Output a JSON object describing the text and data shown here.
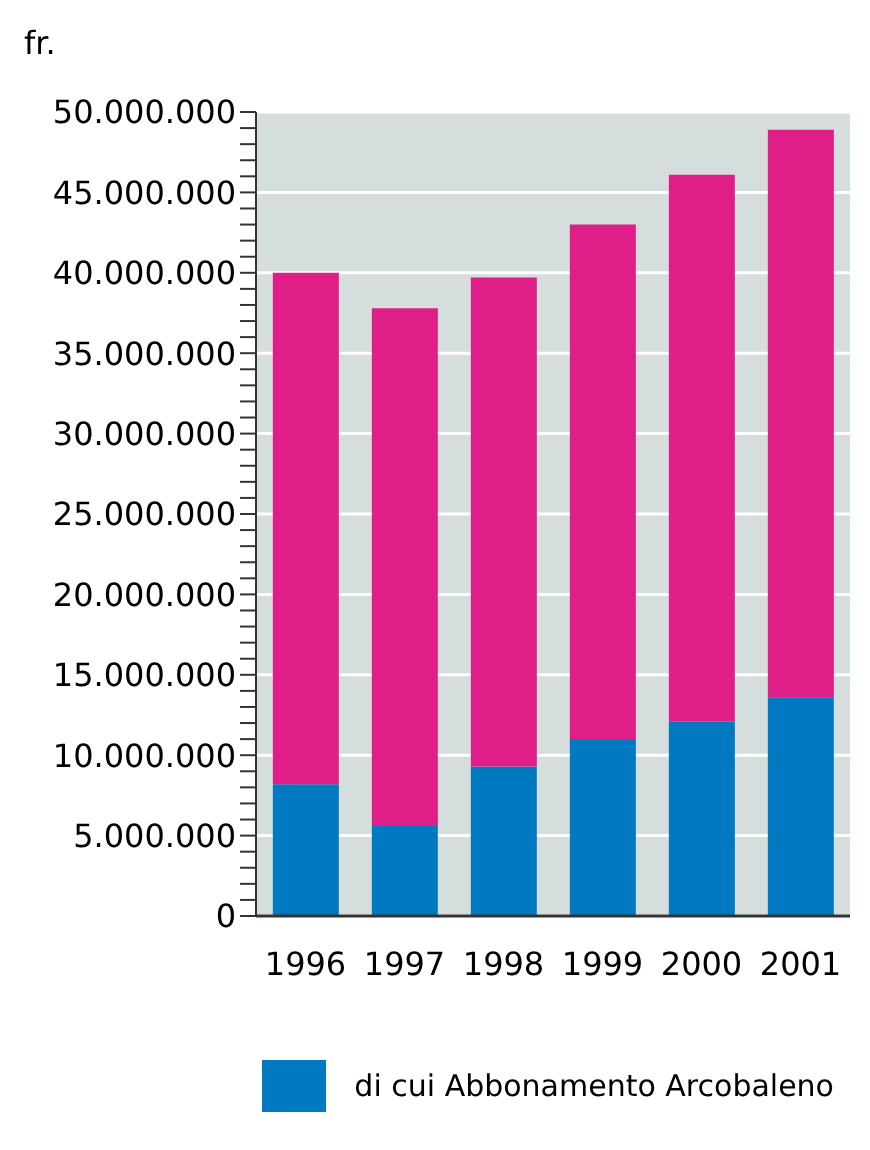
{
  "chart_data": {
    "type": "bar",
    "ylabel": "fr.",
    "categories": [
      "1996",
      "1997",
      "1998",
      "1999",
      "2000",
      "2001"
    ],
    "stacked": true,
    "series": [
      {
        "name": "di cui Abbonamento Arcobaleno",
        "color": "#0079c1",
        "values": [
          8200000,
          5600000,
          9300000,
          11000000,
          12100000,
          13600000
        ]
      },
      {
        "color": "#e01e87",
        "values": [
          31800000,
          32200000,
          30400000,
          32000000,
          34000000,
          35300000
        ]
      }
    ],
    "ylim": [
      0,
      50000000
    ],
    "yticks": [
      0,
      {
        "value": 1000000,
        "label": null
      },
      {
        "value": 2000000,
        "label": null
      },
      {
        "value": 3000000,
        "label": null
      },
      {
        "value": 4000000,
        "label": null
      },
      {
        "value": 5000000,
        "label": "5.000.000"
      },
      {
        "value": 6000000,
        "label": null
      },
      {
        "value": 7000000,
        "label": null
      },
      {
        "value": 8000000,
        "label": null
      },
      {
        "value": 9000000,
        "label": null
      },
      {
        "value": 10000000,
        "label": "10.000.000"
      },
      {
        "value": 11000000,
        "label": null
      },
      {
        "value": 12000000,
        "label": null
      },
      {
        "value": 13000000,
        "label": null
      },
      {
        "value": 14000000,
        "label": null
      },
      {
        "value": 15000000,
        "label": "15.000.000"
      },
      {
        "value": 16000000,
        "label": null
      },
      {
        "value": 17000000,
        "label": null
      },
      {
        "value": 18000000,
        "label": null
      },
      {
        "value": 19000000,
        "label": null
      },
      {
        "value": 20000000,
        "label": "20.000.000"
      },
      {
        "value": 21000000,
        "label": null
      },
      {
        "value": 22000000,
        "label": null
      },
      {
        "value": 23000000,
        "label": null
      },
      {
        "value": 24000000,
        "label": null
      },
      {
        "value": 25000000,
        "label": "25.000.000"
      },
      {
        "value": 26000000,
        "label": null
      },
      {
        "value": 27000000,
        "label": null
      },
      {
        "value": 28000000,
        "label": null
      },
      {
        "value": 29000000,
        "label": null
      },
      {
        "value": 30000000,
        "label": "30.000.000"
      },
      {
        "value": 31000000,
        "label": null
      },
      {
        "value": 32000000,
        "label": null
      },
      {
        "value": 33000000,
        "label": null
      },
      {
        "value": 34000000,
        "label": null
      },
      {
        "value": 35000000,
        "label": "35.000.000"
      },
      {
        "value": 36000000,
        "label": null
      },
      {
        "value": 37000000,
        "label": null
      },
      {
        "value": 38000000,
        "label": null
      },
      {
        "value": 39000000,
        "label": null
      },
      {
        "value": 40000000,
        "label": "40.000.000"
      },
      {
        "value": 41000000,
        "label": null
      },
      {
        "value": 42000000,
        "label": null
      },
      {
        "value": 43000000,
        "label": null
      },
      {
        "value": 44000000,
        "label": null
      },
      {
        "value": 45000000,
        "label": "45.000.000"
      },
      {
        "value": 46000000,
        "label": null
      },
      {
        "value": 47000000,
        "label": null
      },
      {
        "value": 48000000,
        "label": null
      },
      {
        "value": 49000000,
        "label": null
      },
      {
        "value": 50000000,
        "label": "50.000.000"
      }
    ],
    "grid": "y",
    "legend": "bottom"
  }
}
